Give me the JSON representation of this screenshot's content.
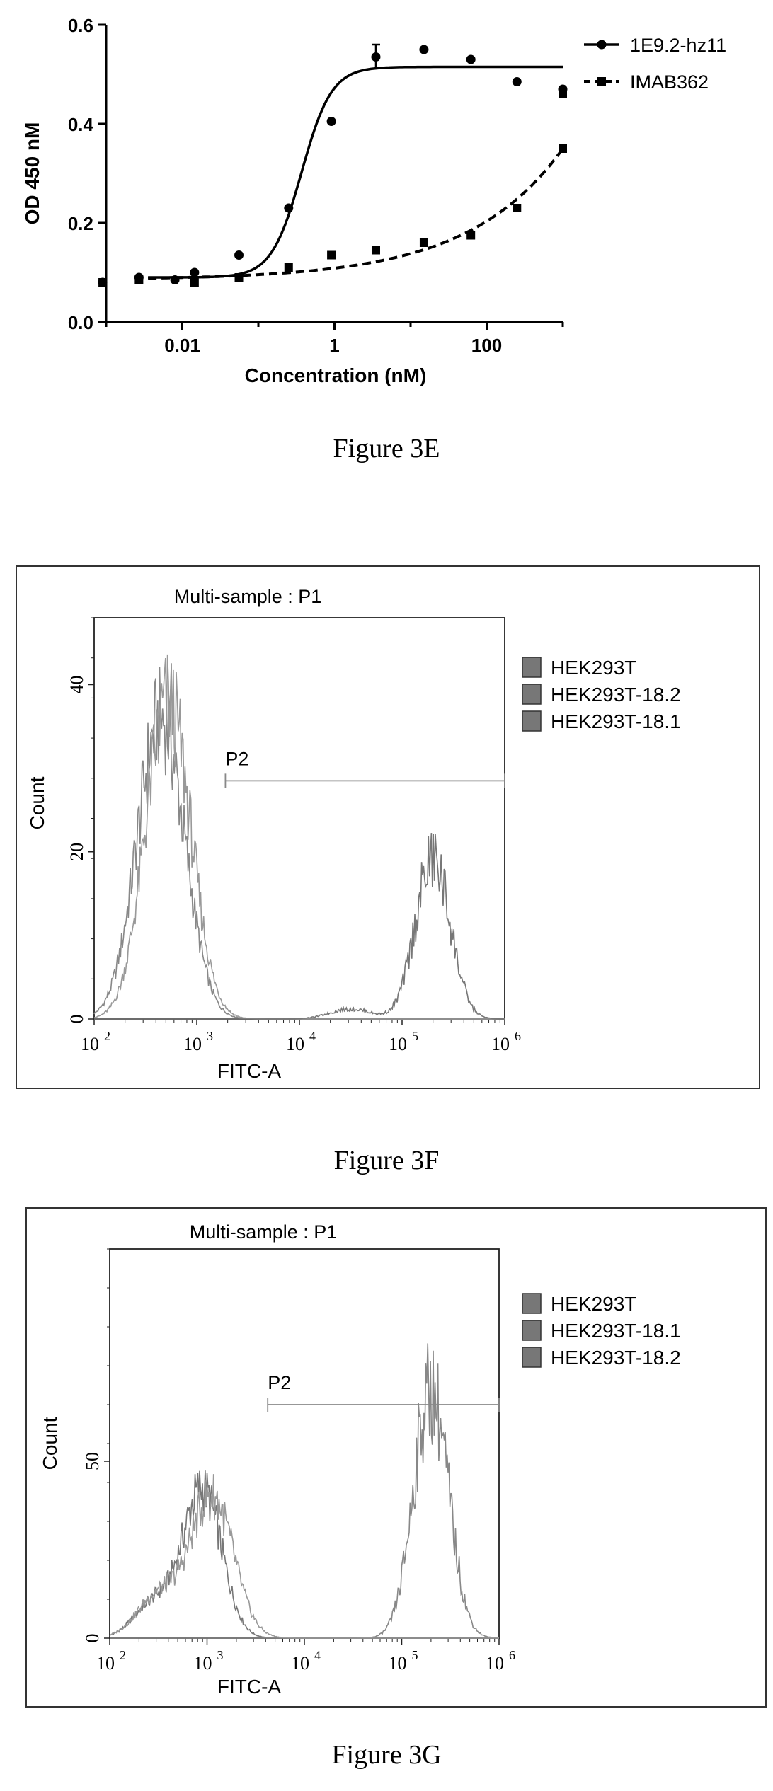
{
  "figures": [
    {
      "caption": "Figure 3E"
    },
    {
      "caption": "Figure 3F"
    },
    {
      "caption": "Figure 3G"
    }
  ],
  "chart_data": [
    {
      "type": "line",
      "title": "",
      "xlabel": "Concentration (nM)",
      "ylabel": "OD 450 nM",
      "x_scale": "log",
      "xlim": [
        0.001,
        1000
      ],
      "ylim": [
        0.0,
        0.6
      ],
      "x_ticks": [
        0.01,
        1,
        100
      ],
      "x_tick_labels": [
        "0.01",
        "1",
        "100"
      ],
      "y_ticks": [
        0.0,
        0.2,
        0.4,
        0.6
      ],
      "y_tick_labels": [
        "0.0",
        "0.2",
        "0.4",
        "0.6"
      ],
      "legend_position": "top-right",
      "series": [
        {
          "name": "1E9.2-hz11",
          "marker": "circle",
          "line_style": "solid",
          "x": [
            0.0009,
            0.0027,
            0.008,
            0.0145,
            0.0555,
            0.25,
            0.91,
            3.5,
            15,
            62,
            250
          ],
          "y": [
            0.08,
            0.09,
            0.085,
            0.1,
            0.135,
            0.23,
            0.405,
            0.535,
            0.55,
            0.53,
            0.485
          ],
          "error": [
            0,
            0,
            0,
            0,
            0,
            0,
            0,
            0.025,
            0,
            0,
            0
          ],
          "extra_points": [
            {
              "x": 1000,
              "y": 0.47
            }
          ]
        },
        {
          "name": "IMAB362",
          "marker": "square",
          "line_style": "dashed",
          "x": [
            0.0009,
            0.0027,
            0.0145,
            0.0555,
            0.25,
            0.91,
            3.5,
            15,
            62,
            250,
            1000
          ],
          "y": [
            0.08,
            0.085,
            0.08,
            0.09,
            0.11,
            0.135,
            0.145,
            0.16,
            0.175,
            0.23,
            0.35
          ],
          "extra_points": [
            {
              "x": 1000,
              "y": 0.46
            }
          ]
        }
      ]
    },
    {
      "type": "area",
      "title": "Multi-sample : P1",
      "xlabel": "FITC-A",
      "ylabel": "Count",
      "x_scale": "log",
      "xlim": [
        100,
        1000000
      ],
      "ylim": [
        0,
        48
      ],
      "x_tick_labels": [
        "10",
        "10",
        "10",
        "10",
        "10"
      ],
      "x_tick_exponents": [
        "2",
        "3",
        "4",
        "5",
        "6"
      ],
      "y_ticks": [
        0,
        20,
        40
      ],
      "y_tick_labels": [
        "0",
        "20",
        "40"
      ],
      "gate": {
        "label": "P2",
        "x_start": 1900,
        "x_end": 1000000,
        "y": 28.5
      },
      "legend_position": "top-right",
      "series": [
        {
          "name": "HEK293T",
          "peak_x": 450,
          "peak_count": 38
        },
        {
          "name": "HEK293T-18.2",
          "peak_x": 520,
          "peak_count": 40
        },
        {
          "name": "HEK293T-18.1",
          "peak_x": 200000,
          "peak_count": 21
        }
      ]
    },
    {
      "type": "area",
      "title": "Multi-sample : P1",
      "xlabel": "FITC-A",
      "ylabel": "Count",
      "x_scale": "log",
      "xlim": [
        100,
        1000000
      ],
      "ylim": [
        0,
        110
      ],
      "x_tick_labels": [
        "10",
        "10",
        "10",
        "10",
        "10"
      ],
      "x_tick_exponents": [
        "2",
        "3",
        "4",
        "5",
        "6"
      ],
      "y_ticks": [
        0,
        50
      ],
      "y_tick_labels": [
        "0",
        "50"
      ],
      "gate": {
        "label": "P2",
        "x_start": 4200,
        "x_end": 1000000,
        "y": 66
      },
      "legend_position": "top-right",
      "series": [
        {
          "name": "HEK293T",
          "peak_x": 900,
          "peak_count": 47
        },
        {
          "name": "HEK293T-18.1",
          "peak_x": 200000,
          "peak_count": 78
        },
        {
          "name": "HEK293T-18.2",
          "peak_x": 1000,
          "peak_count": 44
        }
      ]
    }
  ]
}
